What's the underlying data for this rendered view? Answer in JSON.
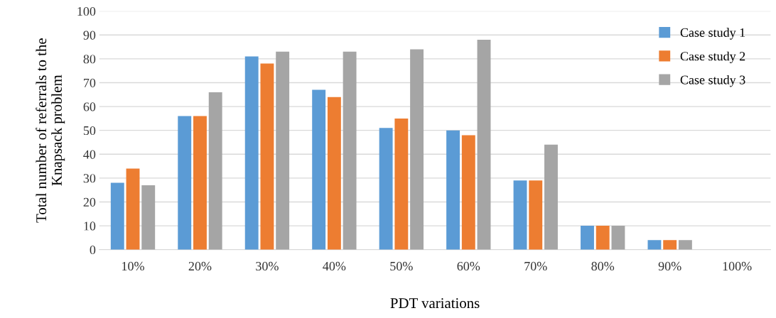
{
  "chart_data": {
    "type": "bar",
    "xlabel": "PDT variations",
    "ylabel": "Total number of referrals to the\nKnapsack problem",
    "categories": [
      "10%",
      "20%",
      "30%",
      "40%",
      "50%",
      "60%",
      "70%",
      "80%",
      "90%",
      "100%"
    ],
    "series": [
      {
        "name": "Case study 1",
        "color": "#5b9bd5",
        "values": [
          28,
          56,
          81,
          67,
          51,
          50,
          29,
          10,
          4,
          0
        ]
      },
      {
        "name": "Case study 2",
        "color": "#ed7d31",
        "values": [
          34,
          56,
          78,
          64,
          55,
          48,
          29,
          10,
          4,
          0
        ]
      },
      {
        "name": "Case study 3",
        "color": "#a5a5a5",
        "values": [
          27,
          66,
          83,
          83,
          84,
          88,
          44,
          10,
          4,
          0
        ]
      }
    ],
    "ylim": [
      0,
      100
    ],
    "yticks": [
      0,
      10,
      20,
      30,
      40,
      50,
      60,
      70,
      80,
      90,
      100
    ],
    "grid": "y",
    "legend": "top right"
  }
}
